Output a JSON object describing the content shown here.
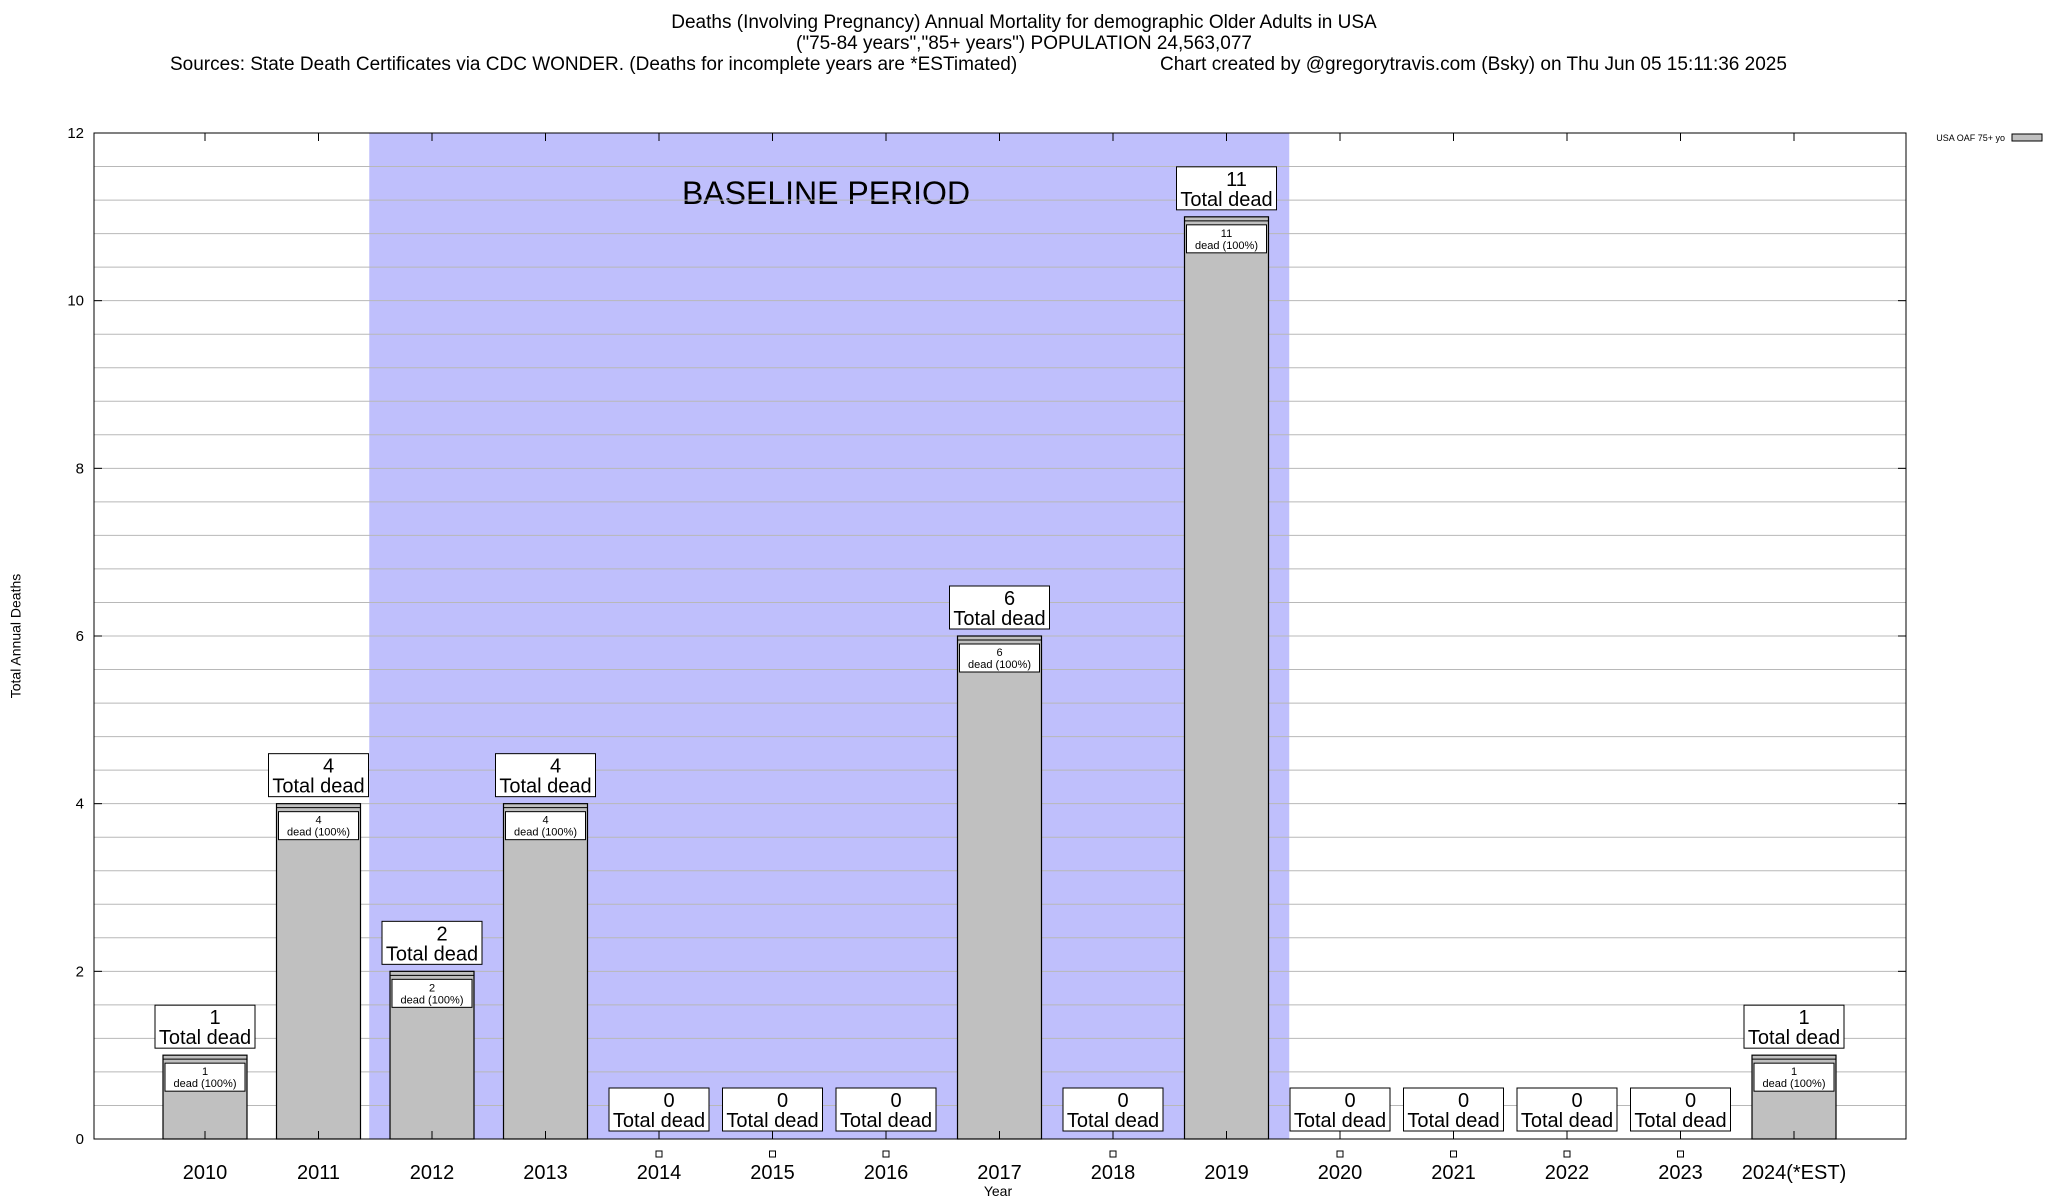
{
  "header": {
    "title_line1": "Deaths (Involving Pregnancy) Annual Mortality for demographic Older Adults in USA",
    "title_line2": "(\"75-84 years\",\"85+ years\") POPULATION 24,563,077",
    "sources": "Sources: State Death Certificates via CDC WONDER. (Deaths for incomplete years are *ESTimated)",
    "credit": "Chart created by @gregorytravis.com (Bsky) on Thu Jun 05 15:11:36 2025"
  },
  "chart_data": {
    "type": "bar",
    "xlabel": "Year",
    "ylabel": "Total Annual Deaths",
    "ylim": [
      0,
      12
    ],
    "y_ticks": [
      0,
      2,
      4,
      6,
      8,
      10,
      12
    ],
    "y_minor_step": 0.4,
    "grid": true,
    "categories": [
      "2010",
      "2011",
      "2012",
      "2013",
      "2014",
      "2015",
      "2016",
      "2017",
      "2018",
      "2019",
      "2020",
      "2021",
      "2022",
      "2023",
      "2024(*EST)"
    ],
    "series": [
      {
        "name": "USA OAF 75+ yo",
        "values": [
          1,
          4,
          2,
          4,
          0,
          0,
          0,
          6,
          0,
          11,
          0,
          0,
          0,
          0,
          1
        ],
        "color": "#c0c0c0"
      }
    ],
    "total_label": "Total dead",
    "inner_label": "dead (100%)",
    "legend": {
      "entries": [
        "USA OAF 75+ yo"
      ],
      "position": "top-right"
    },
    "baseline": {
      "label": "BASELINE PERIOD",
      "from": "2012",
      "to": "2019",
      "color": "#bfbffc"
    }
  }
}
